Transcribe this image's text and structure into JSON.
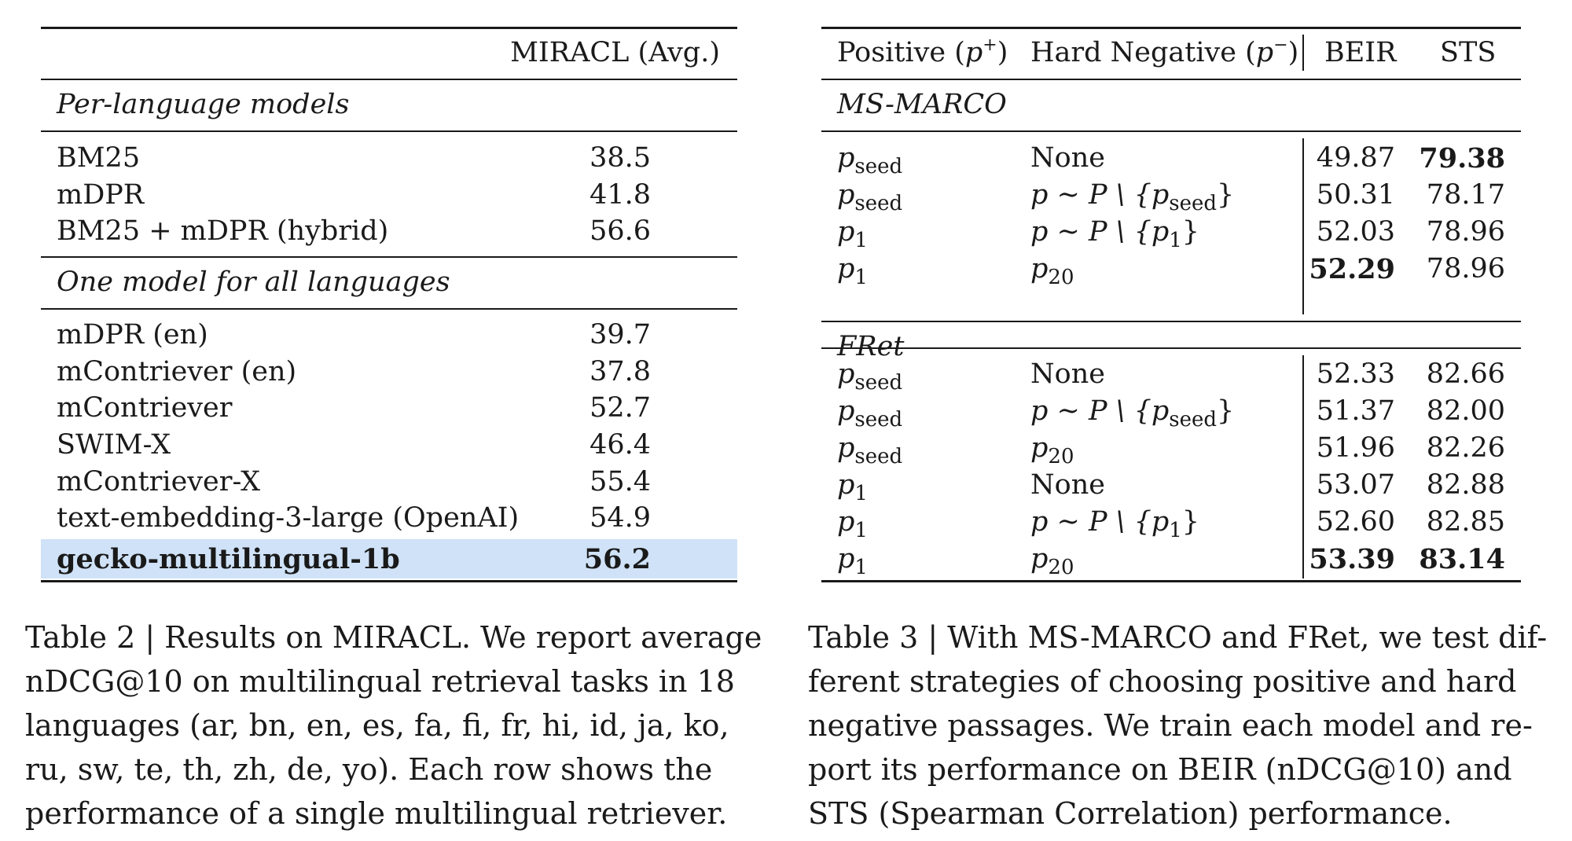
{
  "table2": {
    "header": "MIRACL (Avg.)",
    "sections": [
      {
        "title": "Per-language models",
        "rows": [
          {
            "model": "BM25",
            "score": "38.5"
          },
          {
            "model": "mDPR",
            "score": "41.8"
          },
          {
            "model": "BM25 + mDPR (hybrid)",
            "score": "56.6"
          }
        ]
      },
      {
        "title": "One model for all languages",
        "rows": [
          {
            "model": "mDPR (en)",
            "score": "39.7"
          },
          {
            "model": "mContriever (en)",
            "score": "37.8"
          },
          {
            "model": "mContriever",
            "score": "52.7"
          },
          {
            "model": "SWIM-X",
            "score": "46.4"
          },
          {
            "model": "mContriever-X",
            "score": "55.4"
          },
          {
            "model": "text-embedding-3-large (OpenAI)",
            "score": "54.9"
          },
          {
            "model": "gecko-multilingual-1b",
            "score": "56.2"
          }
        ]
      }
    ],
    "caption": [
      "Table 2 | Results on MIRACL. We report average",
      "nDCG@10 on multilingual retrieval tasks in 18",
      "languages (ar, bn, en, es, fa, fi, fr, hi, id, ja, ko,",
      "ru, sw, te, th, zh, de, yo). Each row shows the",
      "performance of a single multilingual retriever."
    ],
    "highlight_color": "#cfe2f7"
  },
  "table3": {
    "headers": {
      "positive": "Positive (",
      "positive_var": "p",
      "positive_sup": "+",
      "positive_close": ")",
      "negative": "Hard Negative (",
      "negative_var": "p",
      "negative_sup": "−",
      "negative_close": ")",
      "beir": "BEIR",
      "sts": "STS"
    },
    "sections": [
      {
        "title": "MS-MARCO",
        "rows": [
          {
            "pos": "p",
            "pos_sub": "seed",
            "neg": "None",
            "beir": "49.87",
            "sts": "79.38"
          },
          {
            "pos": "p",
            "pos_sub": "seed",
            "neg": "p ∼ P \\ {p",
            "neg_sub": "seed",
            "neg_close": "}",
            "beir": "50.31",
            "sts": "78.17"
          },
          {
            "pos": "p",
            "pos_sub": "1",
            "neg": "p ∼ P \\ {p",
            "neg_sub": "1",
            "neg_close": "}",
            "beir": "52.03",
            "sts": "78.96"
          },
          {
            "pos": "p",
            "pos_sub": "1",
            "neg": "p",
            "neg_sub": "20",
            "neg_close": "",
            "beir": "52.29",
            "sts": "78.96"
          }
        ]
      },
      {
        "title": "FRet",
        "rows": [
          {
            "pos": "p",
            "pos_sub": "seed",
            "neg": "None",
            "beir": "52.33",
            "sts": "82.66"
          },
          {
            "pos": "p",
            "pos_sub": "seed",
            "neg": "p ∼ P \\ {p",
            "neg_sub": "seed",
            "neg_close": "}",
            "beir": "51.37",
            "sts": "82.00"
          },
          {
            "pos": "p",
            "pos_sub": "seed",
            "neg": "p",
            "neg_sub": "20",
            "neg_close": "",
            "beir": "51.96",
            "sts": "82.26"
          },
          {
            "pos": "p",
            "pos_sub": "1",
            "neg": "None",
            "beir": "53.07",
            "sts": "82.88"
          },
          {
            "pos": "p",
            "pos_sub": "1",
            "neg": "p ∼ P \\ {p",
            "neg_sub": "1",
            "neg_close": "}",
            "beir": "52.60",
            "sts": "82.85"
          },
          {
            "pos": "p",
            "pos_sub": "1",
            "neg": "p",
            "neg_sub": "20",
            "neg_close": "",
            "beir": "53.39",
            "sts": "83.14"
          }
        ]
      }
    ],
    "caption": [
      "Table 3 | With MS-MARCO and FRet, we test dif-",
      "ferent strategies of choosing positive and hard",
      "negative passages. We train each model and re-",
      "port its performance on BEIR (nDCG@10) and",
      "STS (Spearman Correlation) performance."
    ]
  }
}
